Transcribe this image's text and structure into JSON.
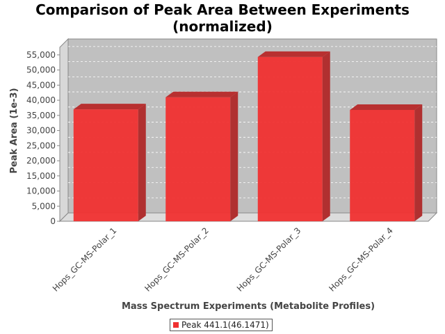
{
  "chart_data": {
    "type": "bar",
    "title_lines": [
      "Comparison of Peak Area Between Experiments",
      "(normalized)"
    ],
    "xlabel": "Mass Spectrum Experiments (Metabolite Profiles)",
    "ylabel": "Peak Area (1e-3)",
    "categories": [
      "Hops_GC-MS-Polar_1",
      "Hops_GC-MS-Polar_2",
      "Hops_GC-MS-Polar_3",
      "Hops_GC-MS-Polar_4"
    ],
    "series": [
      {
        "name": "Peak 441.1(46.1471)",
        "values": [
          37000,
          41000,
          54300,
          36800
        ],
        "color": "#f03030"
      }
    ],
    "ylim": [
      0,
      57500
    ],
    "yticks": [
      0,
      5000,
      10000,
      15000,
      20000,
      25000,
      30000,
      35000,
      40000,
      45000,
      50000,
      55000
    ],
    "ytick_labels": [
      "0",
      "5,000",
      "10,000",
      "15,000",
      "20,000",
      "25,000",
      "30,000",
      "35,000",
      "40,000",
      "45,000",
      "50,000",
      "55,000"
    ],
    "grid": true,
    "legend_position": "bottom",
    "plot_background": "#c0c0c0"
  }
}
